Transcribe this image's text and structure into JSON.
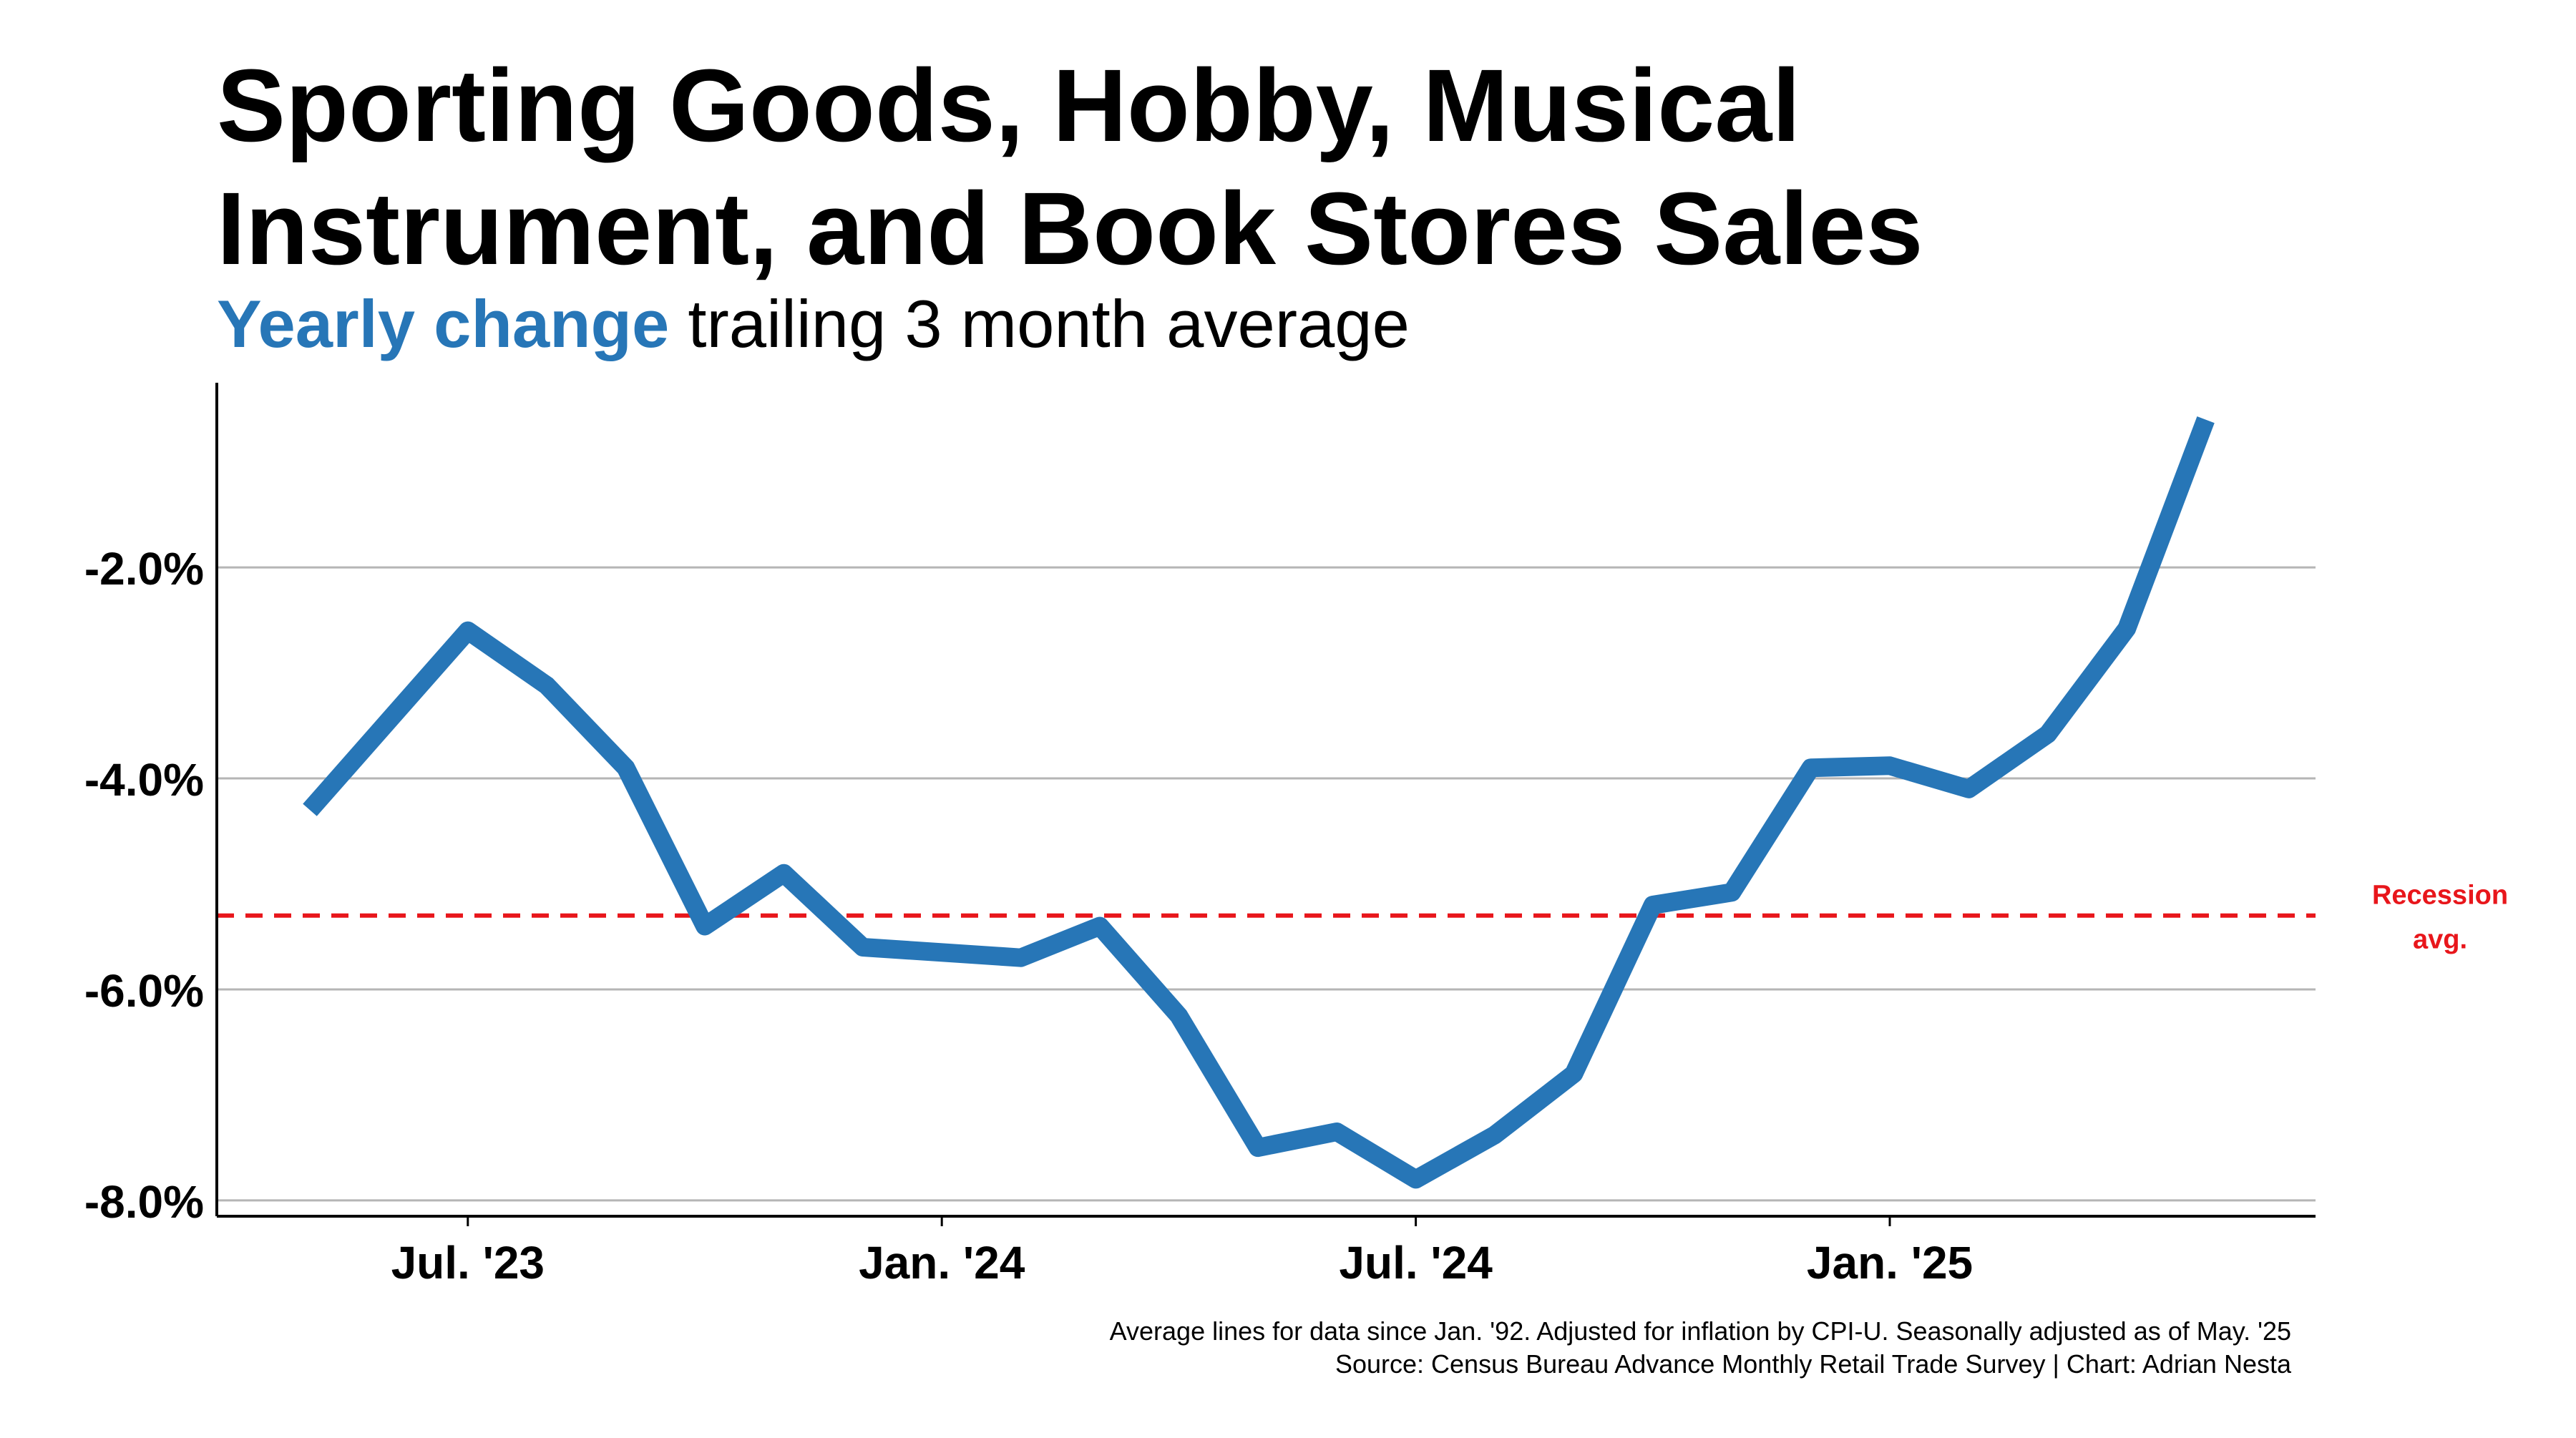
{
  "title_line1": "Sporting Goods, Hobby, Musical",
  "title_line2": "Instrument, and Book Stores Sales",
  "subtitle_highlight": "Yearly change",
  "subtitle_rest": " trailing 3 month average",
  "footer_line1": "Average lines for data since Jan. '92. Adjusted for inflation by CPI-U. Seasonally adjusted as of May. '25",
  "footer_line2": "Source: Census Bureau Advance Monthly Retail Trade Survey | Chart: Adrian Nesta",
  "colors": {
    "line": "#2776b7",
    "recession": "#e8161b",
    "grid": "#b5b5b5",
    "axis": "#000000"
  },
  "chart_data": {
    "type": "line",
    "x": [
      "May. '23",
      "Jun. '23",
      "Jul. '23",
      "Aug. '23",
      "Sep. '23",
      "Oct. '23",
      "Nov. '23",
      "Dec. '23",
      "Jan. '24",
      "Feb. '24",
      "Mar. '24",
      "Apr. '24",
      "May. '24",
      "Jun. '24",
      "Jul. '24",
      "Aug. '24",
      "Sep. '24",
      "Oct. '24",
      "Nov. '24",
      "Dec. '24",
      "Jan. '25",
      "Feb. '25",
      "Mar. '25",
      "Apr. '25",
      "May. '25"
    ],
    "series": [
      {
        "values": [
          -4.3,
          -3.45,
          -2.6,
          -3.12,
          -3.9,
          -5.4,
          -4.9,
          -5.6,
          -5.65,
          -5.7,
          -5.4,
          -6.25,
          -7.5,
          -7.35,
          -7.8,
          -7.38,
          -6.8,
          -5.2,
          -5.08,
          -3.9,
          -3.88,
          -4.1,
          -3.58,
          -2.58,
          -0.6
        ]
      }
    ],
    "xticks": [
      {
        "label": "Jul. '23",
        "index": 2
      },
      {
        "label": "Jan. '24",
        "index": 8
      },
      {
        "label": "Jul. '24",
        "index": 14
      },
      {
        "label": "Jan. '25",
        "index": 20
      }
    ],
    "yticks": [
      {
        "label": "-2.0%",
        "value": -2
      },
      {
        "label": "-4.0%",
        "value": -4
      },
      {
        "label": "-6.0%",
        "value": -6
      },
      {
        "label": "-8.0%",
        "value": -8
      }
    ],
    "ylim": [
      -8.15,
      -0.25
    ],
    "grid": true,
    "reference_line": {
      "label_line1": "Recession",
      "label_line2": "avg.",
      "value": -5.3,
      "style": "dashed"
    }
  }
}
